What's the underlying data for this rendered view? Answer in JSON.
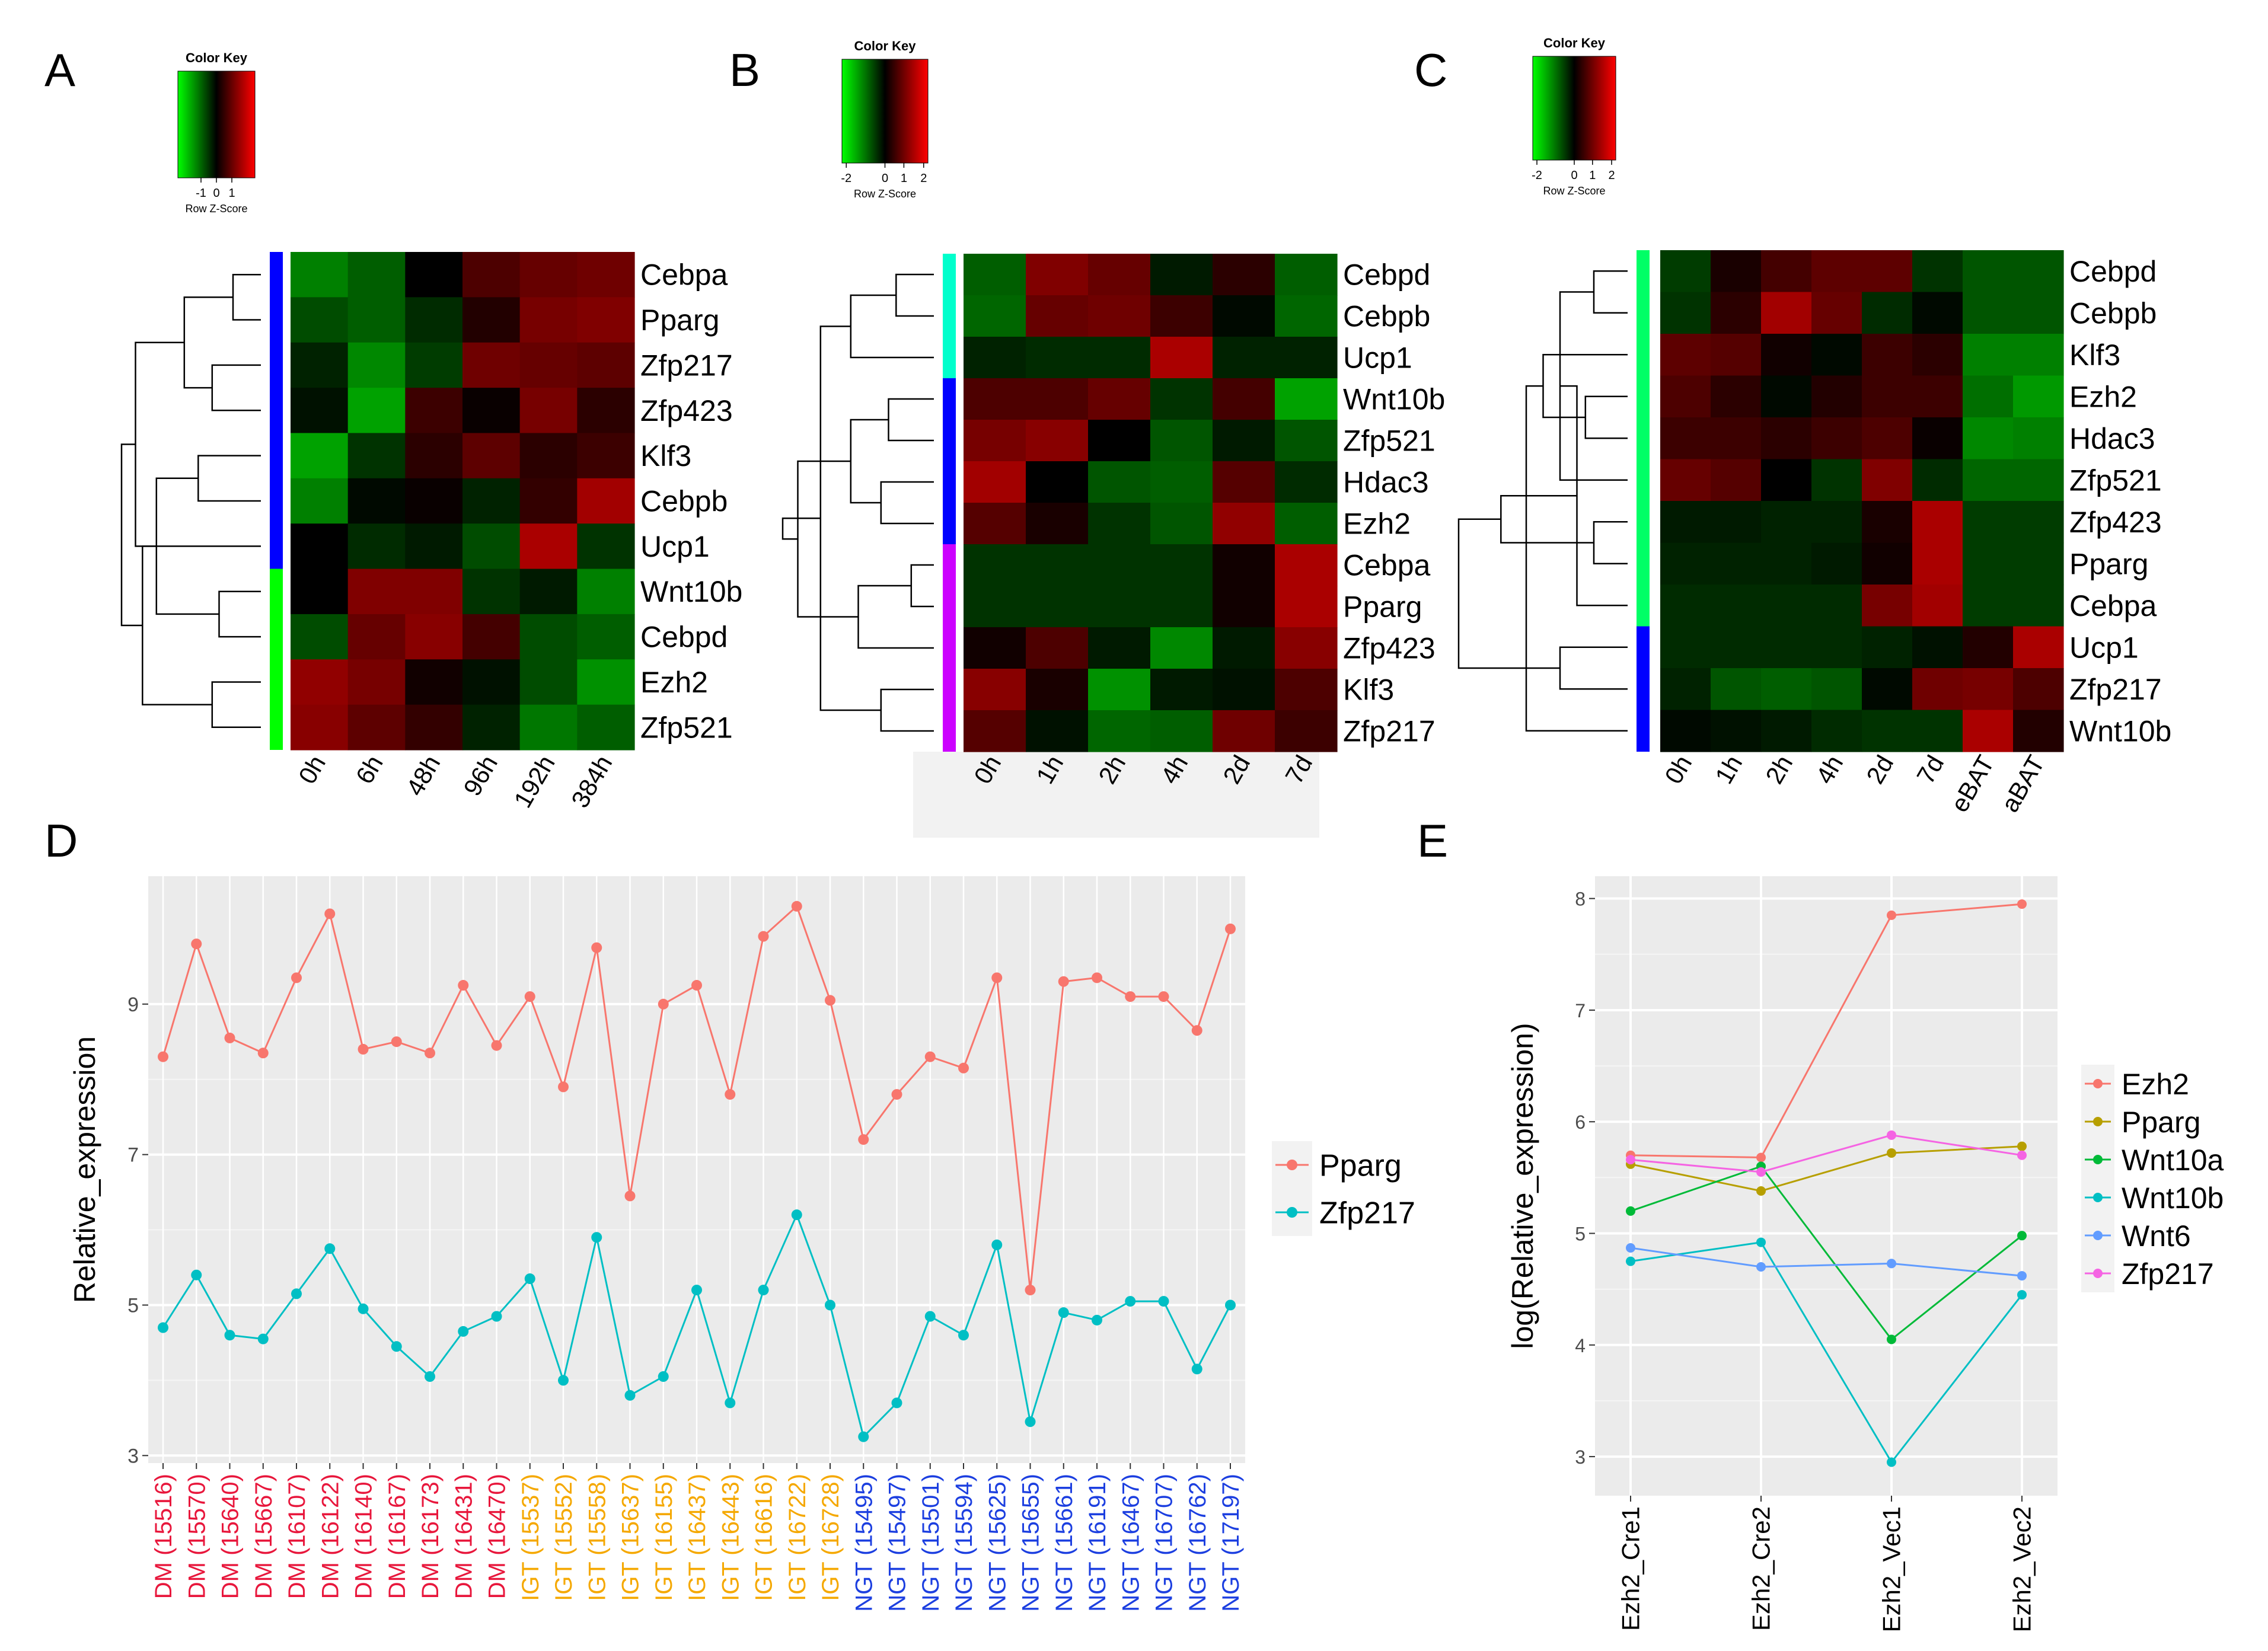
{
  "panels": {
    "A": "A",
    "B": "B",
    "C": "C",
    "D": "D",
    "E": "E"
  },
  "chart_data": [
    {
      "panel": "A",
      "type": "heatmap",
      "color_key": {
        "title": "Color Key",
        "axis_label": "Row Z-Score",
        "ticks": [
          "-1",
          "0",
          "1"
        ],
        "low": "#00ff00",
        "mid": "#000000",
        "high": "#ff0000"
      },
      "columns": [
        "0h",
        "6h",
        "48h",
        "96h",
        "192h",
        "384h"
      ],
      "rows": [
        "Cebpa",
        "Pparg",
        "Zfp217",
        "Zfp423",
        "Klf3",
        "Cebpb",
        "Ucp1",
        "Wnt10b",
        "Cebpd",
        "Ezh2",
        "Zfp521"
      ],
      "row_groups": [
        {
          "color": "#0000ff",
          "count": 7
        },
        {
          "color": "#00ff00",
          "count": 4
        }
      ],
      "values": [
        [
          -0.75,
          -0.55,
          0.0,
          0.45,
          0.6,
          0.65
        ],
        [
          -0.45,
          -0.55,
          -0.25,
          0.2,
          0.7,
          0.75
        ],
        [
          -0.2,
          -0.8,
          -0.35,
          0.65,
          0.6,
          0.55
        ],
        [
          -0.1,
          -0.95,
          0.35,
          0.05,
          0.7,
          0.25
        ],
        [
          -0.95,
          -0.3,
          0.25,
          0.55,
          0.25,
          0.35
        ],
        [
          -0.75,
          -0.05,
          0.05,
          -0.2,
          0.3,
          0.95
        ],
        [
          0.0,
          -0.25,
          -0.15,
          -0.45,
          1.0,
          -0.3
        ],
        [
          0.0,
          0.75,
          0.75,
          -0.3,
          -0.15,
          -0.75
        ],
        [
          -0.45,
          0.6,
          0.8,
          0.4,
          -0.45,
          -0.55
        ],
        [
          0.85,
          0.7,
          0.1,
          -0.1,
          -0.45,
          -0.85
        ],
        [
          0.8,
          0.55,
          0.3,
          -0.2,
          -0.7,
          -0.55
        ]
      ],
      "vmin": -1.5,
      "vmax": 1.5
    },
    {
      "panel": "B",
      "type": "heatmap",
      "color_key": {
        "title": "Color Key",
        "axis_label": "Row Z-Score",
        "ticks": [
          "-2",
          "0",
          "1",
          "2"
        ],
        "low": "#00ff00",
        "mid": "#000000",
        "high": "#ff0000"
      },
      "columns": [
        "0h",
        "1h",
        "2h",
        "4h",
        "2d",
        "7d"
      ],
      "rows": [
        "Cebpd",
        "Cebpb",
        "Ucp1",
        "Wnt10b",
        "Zfp521",
        "Hdac3",
        "Ezh2",
        "Cebpa",
        "Pparg",
        "Zfp423",
        "Klf3",
        "Zfp217"
      ],
      "row_groups": [
        {
          "color": "#00ffcc",
          "count": 3
        },
        {
          "color": "#0000ff",
          "count": 4
        },
        {
          "color": "#cc00ff",
          "count": 5
        }
      ],
      "values": [
        [
          -0.55,
          0.75,
          0.6,
          -0.15,
          0.25,
          -0.55
        ],
        [
          -0.6,
          0.6,
          0.65,
          0.35,
          -0.05,
          -0.6
        ],
        [
          -0.2,
          -0.25,
          -0.25,
          1.0,
          -0.2,
          -0.2
        ],
        [
          0.45,
          0.45,
          0.6,
          -0.3,
          0.4,
          -0.95
        ],
        [
          0.7,
          0.8,
          0.0,
          -0.5,
          -0.15,
          -0.5
        ],
        [
          0.95,
          0.0,
          -0.5,
          -0.55,
          0.5,
          -0.25
        ],
        [
          0.5,
          0.15,
          -0.3,
          -0.5,
          0.85,
          -0.55
        ],
        [
          -0.3,
          -0.3,
          -0.3,
          -0.3,
          0.1,
          1.0
        ],
        [
          -0.3,
          -0.3,
          -0.3,
          -0.3,
          0.1,
          1.0
        ],
        [
          0.1,
          0.45,
          -0.15,
          -0.8,
          -0.15,
          0.8
        ],
        [
          0.8,
          0.15,
          -0.85,
          -0.15,
          -0.1,
          0.45
        ],
        [
          0.5,
          -0.1,
          -0.6,
          -0.55,
          0.65,
          0.35
        ]
      ],
      "vmin": -1.5,
      "vmax": 1.5
    },
    {
      "panel": "C",
      "type": "heatmap",
      "color_key": {
        "title": "Color Key",
        "axis_label": "Row Z-Score",
        "ticks": [
          "-2",
          "0",
          "1",
          "2"
        ],
        "low": "#00ff00",
        "mid": "#000000",
        "high": "#ff0000"
      },
      "columns": [
        "0h",
        "1h",
        "2h",
        "4h",
        "2d",
        "7d",
        "eBAT",
        "aBAT"
      ],
      "rows": [
        "Cebpd",
        "Cebpb",
        "Klf3",
        "Ezh2",
        "Hdac3",
        "Zfp521",
        "Zfp423",
        "Pparg",
        "Cebpa",
        "Ucp1",
        "Zfp217",
        "Wnt10b"
      ],
      "row_groups": [
        {
          "color": "#00ff66",
          "count": 9
        },
        {
          "color": "#0000ff",
          "count": 3
        }
      ],
      "values": [
        [
          -0.35,
          0.15,
          0.4,
          0.55,
          0.55,
          -0.3,
          -0.5,
          -0.5
        ],
        [
          -0.3,
          0.25,
          0.95,
          0.6,
          -0.25,
          -0.05,
          -0.5,
          -0.5
        ],
        [
          0.55,
          0.5,
          0.1,
          -0.05,
          0.35,
          0.25,
          -0.75,
          -0.75
        ],
        [
          0.45,
          0.25,
          -0.05,
          0.2,
          0.35,
          0.35,
          -0.65,
          -0.9
        ],
        [
          0.35,
          0.35,
          0.25,
          0.35,
          0.45,
          0.05,
          -0.8,
          -0.75
        ],
        [
          0.6,
          0.5,
          0.0,
          -0.3,
          0.75,
          -0.25,
          -0.6,
          -0.6
        ],
        [
          -0.15,
          -0.15,
          -0.2,
          -0.2,
          0.15,
          1.0,
          -0.35,
          -0.35
        ],
        [
          -0.2,
          -0.2,
          -0.2,
          -0.15,
          0.1,
          1.0,
          -0.35,
          -0.35
        ],
        [
          -0.25,
          -0.25,
          -0.25,
          -0.25,
          0.7,
          0.95,
          -0.35,
          -0.35
        ],
        [
          -0.25,
          -0.25,
          -0.25,
          -0.25,
          -0.2,
          -0.1,
          0.2,
          1.0
        ],
        [
          -0.2,
          -0.5,
          -0.55,
          -0.5,
          -0.05,
          0.65,
          0.7,
          0.45
        ],
        [
          -0.05,
          -0.1,
          -0.15,
          -0.25,
          -0.3,
          -0.3,
          1.0,
          0.2
        ]
      ],
      "vmin": -1.5,
      "vmax": 1.5
    },
    {
      "panel": "D",
      "type": "line",
      "ylabel": "Relative_expression",
      "ylim": [
        2.9,
        10.7
      ],
      "yticks": [
        3,
        5,
        7,
        9
      ],
      "categories": [
        "DM (15516)",
        "DM (15570)",
        "DM (15640)",
        "DM (15667)",
        "DM (16107)",
        "DM (16122)",
        "DM (16140)",
        "DM (16167)",
        "DM (16173)",
        "DM (16431)",
        "DM (16470)",
        "IGT (15537)",
        "IGT (15552)",
        "IGT (15558)",
        "IGT (15637)",
        "IGT (16155)",
        "IGT (16437)",
        "IGT (16443)",
        "IGT (16616)",
        "IGT (16722)",
        "IGT (16728)",
        "NGT (15495)",
        "NGT (15497)",
        "NGT (15501)",
        "NGT (15594)",
        "NGT (15625)",
        "NGT (15655)",
        "NGT (15661)",
        "NGT (16191)",
        "NGT (16467)",
        "NGT (16707)",
        "NGT (16762)",
        "NGT (17197)"
      ],
      "category_colors": {
        "DM": "#e8173c",
        "IGT": "#f5a800",
        "NGT": "#1c3fe0"
      },
      "series": [
        {
          "name": "Pparg",
          "color": "#f8766d",
          "values": [
            8.3,
            9.8,
            8.55,
            8.35,
            9.35,
            10.2,
            8.4,
            8.5,
            8.35,
            9.25,
            8.45,
            9.1,
            7.9,
            9.75,
            6.45,
            9.0,
            9.25,
            7.8,
            9.9,
            10.3,
            9.05,
            7.2,
            7.8,
            8.3,
            8.15,
            9.35,
            5.2,
            9.3,
            9.35,
            9.1,
            9.1,
            8.65,
            10.0
          ]
        },
        {
          "name": "Zfp217",
          "color": "#00bfc4",
          "values": [
            4.7,
            5.4,
            4.6,
            4.55,
            5.15,
            5.75,
            4.95,
            4.45,
            4.05,
            4.65,
            4.85,
            5.35,
            4.0,
            5.9,
            3.8,
            4.05,
            5.2,
            3.7,
            5.2,
            6.2,
            5.0,
            3.25,
            3.7,
            4.85,
            4.6,
            5.8,
            3.45,
            4.9,
            4.8,
            5.05,
            5.05,
            4.15,
            5.0
          ]
        }
      ],
      "legend_position": "right"
    },
    {
      "panel": "E",
      "type": "line",
      "ylabel": "log(Relative_expression)",
      "ylim": [
        2.65,
        8.2
      ],
      "yticks": [
        3,
        4,
        5,
        6,
        7,
        8
      ],
      "categories": [
        "Ezh2_Cre1",
        "Ezh2_Cre2",
        "Ezh2_Vec1",
        "Ezh2_Vec2"
      ],
      "series": [
        {
          "name": "Ezh2",
          "color": "#f8766d",
          "values": [
            5.7,
            5.68,
            7.85,
            7.95
          ]
        },
        {
          "name": "Pparg",
          "color": "#b79f00",
          "values": [
            5.62,
            5.38,
            5.72,
            5.78
          ]
        },
        {
          "name": "Wnt10a",
          "color": "#00ba38",
          "values": [
            5.2,
            5.6,
            4.05,
            4.98
          ]
        },
        {
          "name": "Wnt10b",
          "color": "#00bfc4",
          "values": [
            4.75,
            4.92,
            2.95,
            4.45
          ]
        },
        {
          "name": "Wnt6",
          "color": "#619cff",
          "values": [
            4.87,
            4.7,
            4.73,
            4.62
          ]
        },
        {
          "name": "Zfp217",
          "color": "#f564e3",
          "values": [
            5.66,
            5.55,
            5.88,
            5.7
          ]
        }
      ],
      "legend_position": "right"
    }
  ]
}
